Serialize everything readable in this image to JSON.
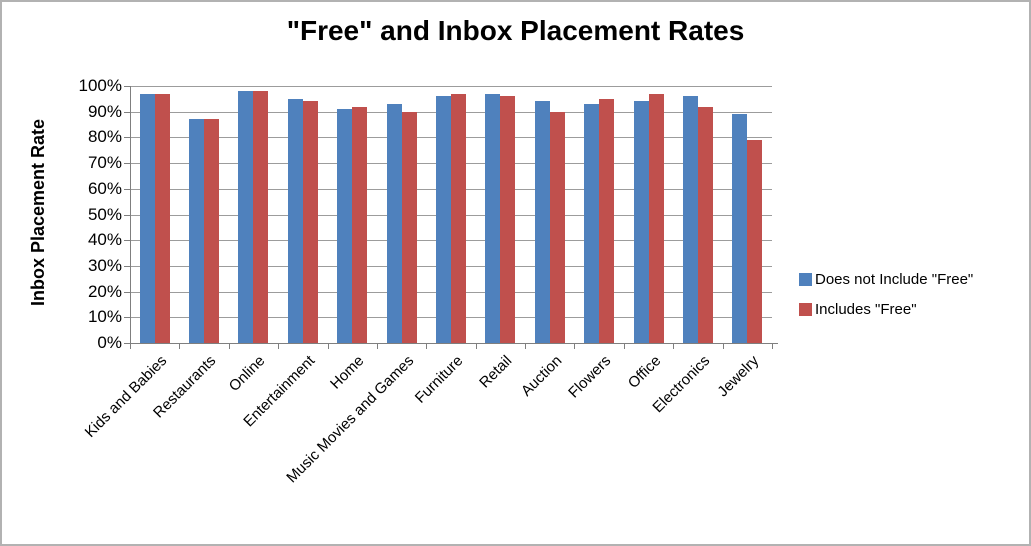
{
  "chart_data": {
    "type": "bar",
    "title": "\"Free\" and Inbox Placement Rates",
    "xlabel": "",
    "ylabel": "Inbox Placement Rate",
    "ylim": [
      0,
      100
    ],
    "ytick_step": 10,
    "ytick_labels": [
      "0%",
      "10%",
      "20%",
      "30%",
      "40%",
      "50%",
      "60%",
      "70%",
      "80%",
      "90%",
      "100%"
    ],
    "grid": true,
    "legend_position": "right",
    "categories": [
      "Kids and Babies",
      "Restaurants",
      "Online",
      "Entertainment",
      "Home",
      "Music Movies and Games",
      "Furniture",
      "Retail",
      "Auction",
      "Flowers",
      "Office",
      "Electronics",
      "Jewelry"
    ],
    "series": [
      {
        "name": "Does not Include \"Free\"",
        "color": "#4F81BD",
        "values": [
          97,
          87,
          98,
          95,
          91,
          93,
          96,
          97,
          94,
          93,
          94,
          96,
          89
        ]
      },
      {
        "name": "Includes \"Free\"",
        "color": "#C0504D",
        "values": [
          97,
          87,
          98,
          94,
          92,
          90,
          97,
          96,
          90,
          95,
          97,
          92,
          79
        ]
      }
    ]
  },
  "colors": {
    "gridline": "#9c9c9c",
    "axis": "#7f7f7f",
    "text": "#000000",
    "background": "#ffffff",
    "frame_border": "#b2b2b2"
  }
}
